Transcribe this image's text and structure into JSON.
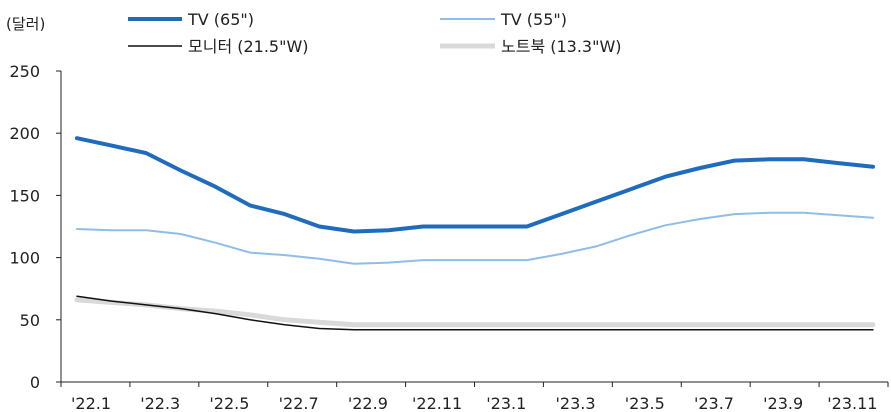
{
  "chart_data": {
    "type": "line",
    "unit_label": "(달러)",
    "x": [
      "'22.1",
      "'22.2",
      "'22.3",
      "'22.4",
      "'22.5",
      "'22.6",
      "'22.7",
      "'22.8",
      "'22.9",
      "'22.10",
      "'22.11",
      "'22.12",
      "'23.1",
      "'23.2",
      "'23.3",
      "'23.4",
      "'23.5",
      "'23.6",
      "'23.7",
      "'23.8",
      "'23.9",
      "'23.10",
      "'23.11",
      "'23.12"
    ],
    "x_tick_labels": [
      "'22.1",
      "'22.3",
      "'22.5",
      "'22.7",
      "'22.9",
      "'22.11",
      "'23.1",
      "'23.3",
      "'23.5",
      "'23.7",
      "'23.9",
      "'23.11"
    ],
    "y_ticks": [
      0,
      50,
      100,
      150,
      200,
      250
    ],
    "ylim": [
      0,
      250
    ],
    "series": [
      {
        "name": "TV (65\")",
        "color": "#1f6cbf",
        "width": 4,
        "values": [
          196,
          190,
          184,
          170,
          157,
          142,
          135,
          125,
          121,
          122,
          125,
          125,
          125,
          125,
          135,
          145,
          155,
          165,
          172,
          178,
          179,
          179,
          176,
          173
        ]
      },
      {
        "name": "TV (55\")",
        "color": "#8fbde9",
        "width": 2,
        "values": [
          123,
          122,
          122,
          119,
          112,
          104,
          102,
          99,
          95,
          96,
          98,
          98,
          98,
          98,
          103,
          109,
          118,
          126,
          131,
          135,
          136,
          136,
          134,
          132
        ]
      },
      {
        "name": "모니터 (21.5\"W)",
        "color": "#111111",
        "width": 1.5,
        "values": [
          69,
          65,
          62,
          59,
          55,
          50,
          46,
          43,
          42,
          42,
          42,
          42,
          42,
          42,
          42,
          42,
          42,
          42,
          42,
          42,
          42,
          42,
          42,
          42
        ]
      },
      {
        "name": "노트북 (13.3\"W)",
        "color": "#d9d9d9",
        "width": 5,
        "values": [
          66,
          64,
          62,
          59,
          57,
          54,
          50,
          48,
          46,
          46,
          46,
          46,
          46,
          46,
          46,
          46,
          46,
          46,
          46,
          46,
          46,
          46,
          46,
          46
        ]
      }
    ],
    "legend_position": "top"
  }
}
